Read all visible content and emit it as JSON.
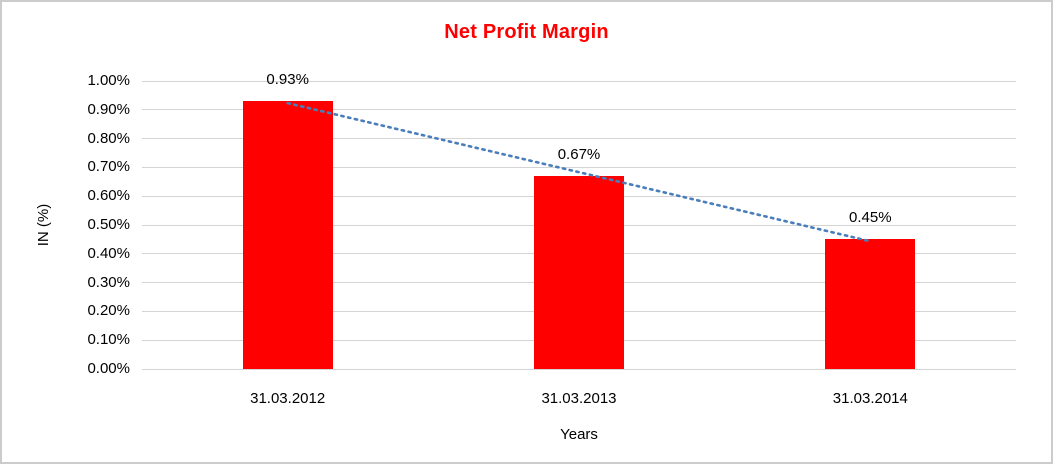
{
  "window": {
    "background": "#ffffff",
    "border_color": "#cccccc"
  },
  "chart_data": {
    "type": "bar",
    "title": "Net Profit Margin",
    "title_color": "#ff0000",
    "categories": [
      "31.03.2012",
      "31.03.2013",
      "31.03.2014"
    ],
    "values": [
      0.93,
      0.67,
      0.45
    ],
    "data_labels": [
      "0.93%",
      "0.67%",
      "0.45%"
    ],
    "xlabel": "Years",
    "ylabel": "IN (%)",
    "ylim": [
      0,
      1.0
    ],
    "ytick_step": 0.1,
    "ytick_labels": [
      "0.00%",
      "0.10%",
      "0.20%",
      "0.30%",
      "0.40%",
      "0.50%",
      "0.60%",
      "0.70%",
      "0.80%",
      "0.90%",
      "1.00%"
    ],
    "bar_color": "#ff0000",
    "gridline_color": "#d4d4d4",
    "text_color": "#000000",
    "grid": true,
    "legend": "none",
    "trendline": {
      "type": "linear",
      "style": "dotted",
      "color": "#4a7ebb"
    }
  }
}
